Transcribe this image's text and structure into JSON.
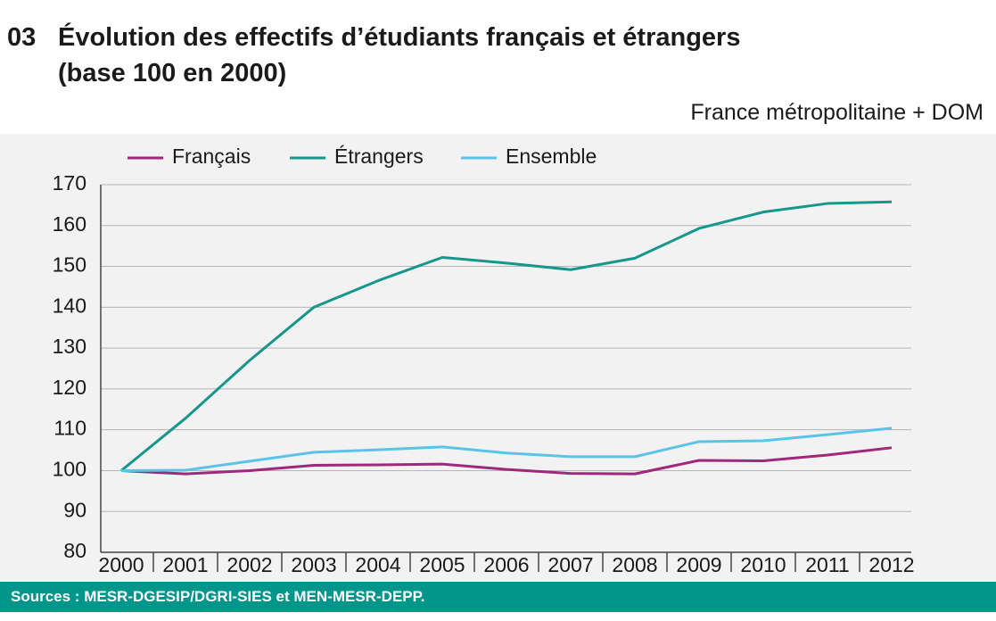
{
  "chart_data": {
    "type": "line",
    "number": "03",
    "title": "Évolution des effectifs d’étudiants français et étrangers",
    "title_line2": "(base 100 en 2000)",
    "subtitle": "France métropolitaine + DOM",
    "source": "Sources : MESR-DGESIP/DGRI-SIES et MEN-MESR-DEPP.",
    "categories": [
      "2000",
      "2001",
      "2002",
      "2003",
      "2004",
      "2005",
      "2006",
      "2007",
      "2008",
      "2009",
      "2010",
      "2011",
      "2012"
    ],
    "series": [
      {
        "name": "Français",
        "color": "#a0287a",
        "values": [
          100,
          99.2,
          100,
          101.3,
          101.4,
          101.6,
          100.3,
          99.3,
          99.2,
          102.5,
          102.4,
          103.8,
          105.6
        ]
      },
      {
        "name": "Étrangers",
        "color": "#17968c",
        "values": [
          100,
          112.8,
          127,
          140,
          146.5,
          152.2,
          150.8,
          149.2,
          152,
          159.3,
          163.3,
          165.4,
          165.8
        ]
      },
      {
        "name": "Ensemble",
        "color": "#5bc4e6",
        "values": [
          100,
          100.1,
          102.3,
          104.5,
          105.1,
          105.8,
          104.3,
          103.4,
          103.4,
          107.1,
          107.3,
          108.8,
          110.4
        ]
      }
    ],
    "ylim": [
      80,
      170
    ],
    "yticks": [
      80,
      90,
      100,
      110,
      120,
      130,
      140,
      150,
      160,
      170
    ],
    "grid": true
  }
}
